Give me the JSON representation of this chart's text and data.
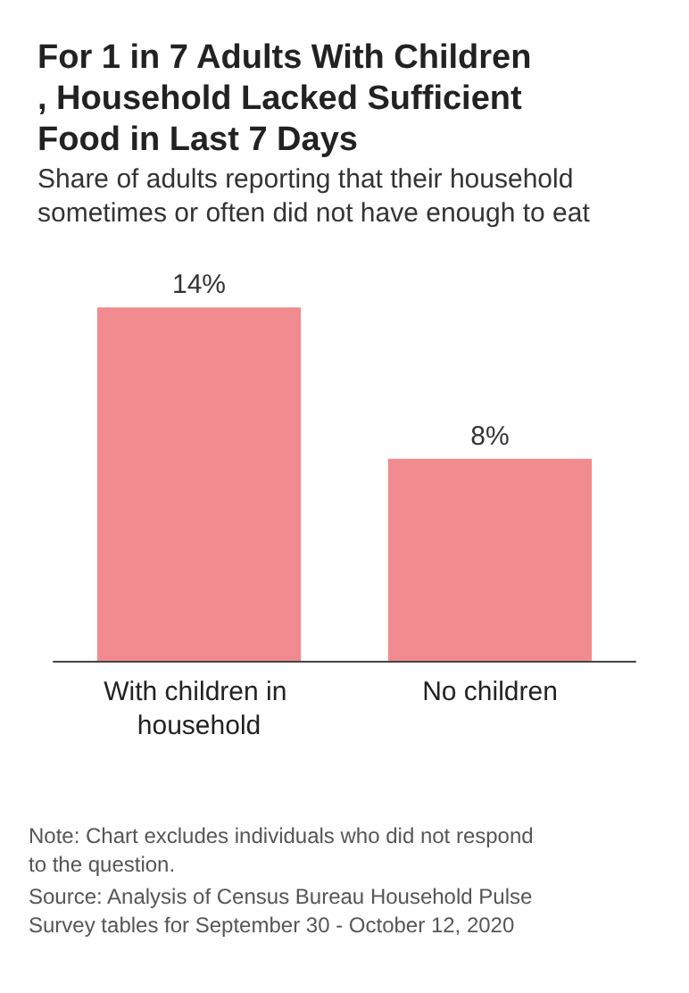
{
  "chart_data": {
    "type": "bar",
    "title": "For 1 in 7 Adults With Children, Household Lacked Sufficient Food in Last 7 Days",
    "subtitle": "Share of adults reporting that their household sometimes or often did not have enough to eat",
    "categories": [
      "With children in household",
      "No children"
    ],
    "values": [
      14,
      8
    ],
    "color": "#f28b8f",
    "data_labels": true,
    "value_labels": [
      "14%",
      "8%"
    ],
    "annotations": [
      "Note: Chart excludes individuals who did not respond to the question.",
      "Source: Analysis of Census Bureau Household Pulse Survey tables for September 30 - October 12, 2020"
    ]
  }
}
